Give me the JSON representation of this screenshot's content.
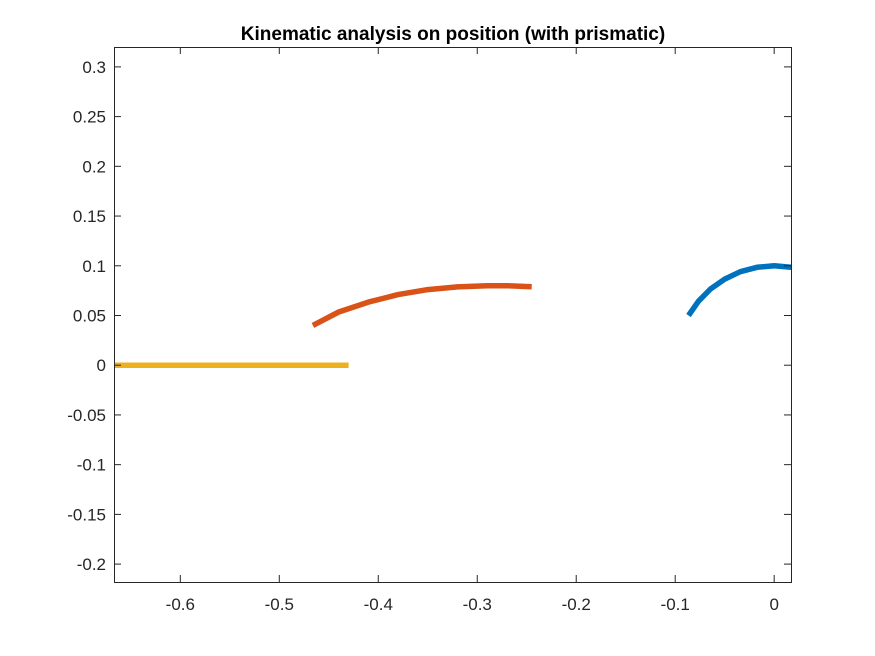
{
  "chart_data": {
    "type": "line",
    "title": "Kinematic analysis on position (with prismatic)",
    "xlabel": "",
    "ylabel": "",
    "xlim": [
      -0.667,
      0.017
    ],
    "ylim": [
      -0.218,
      0.32
    ],
    "xticks": [
      -0.6,
      -0.5,
      -0.4,
      -0.3,
      -0.2,
      -0.1,
      0
    ],
    "xtick_labels": [
      "-0.6",
      "-0.5",
      "-0.4",
      "-0.3",
      "-0.2",
      "-0.1",
      "0"
    ],
    "yticks": [
      -0.2,
      -0.15,
      -0.1,
      -0.05,
      0,
      0.05,
      0.1,
      0.15,
      0.2,
      0.25,
      0.3
    ],
    "ytick_labels": [
      "-0.2",
      "-0.15",
      "-0.1",
      "-0.05",
      "0",
      "0.05",
      "0.1",
      "0.15",
      "0.2",
      "0.25",
      "0.3"
    ],
    "grid": false,
    "series": [
      {
        "color": "#0072BD",
        "x": [
          -0.0866,
          -0.0766,
          -0.0643,
          -0.05,
          -0.0342,
          -0.0174,
          0.0,
          0.0174
        ],
        "y": [
          0.05,
          0.0643,
          0.0766,
          0.0866,
          0.094,
          0.0985,
          0.1,
          0.0985
        ]
      },
      {
        "color": "#D95319",
        "x": [
          -0.466,
          -0.44,
          -0.41,
          -0.38,
          -0.35,
          -0.32,
          -0.29,
          -0.27,
          -0.245
        ],
        "y": [
          0.04,
          0.0535,
          0.0635,
          0.071,
          0.076,
          0.0788,
          0.08,
          0.08,
          0.079
        ]
      },
      {
        "color": "#EDB120",
        "x": [
          -0.667,
          -0.43
        ],
        "y": [
          0.0,
          0.0
        ]
      }
    ]
  }
}
